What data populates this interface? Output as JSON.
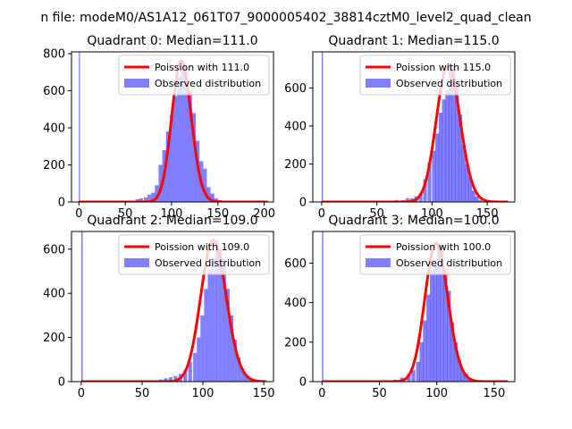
{
  "figure": {
    "suptitle": "n file: modeM0/AS1A12_061T07_9000005402_38814cztM0_level2_quad_clean"
  },
  "colors": {
    "fit": "#ff0000",
    "hist": "#0000ff",
    "hist_alpha": 0.5
  },
  "chart_data": [
    {
      "type": "bar",
      "title": "Quadrant 0: Median=111.0",
      "xlim": [
        -8,
        210
      ],
      "ylim": [
        0,
        810
      ],
      "xticks": [
        0,
        50,
        100,
        150,
        200
      ],
      "yticks": [
        0,
        200,
        400,
        600,
        800
      ],
      "legend": [
        "Poission with 111.0",
        "Observed distribution"
      ],
      "median": 111.0,
      "hist": {
        "bin_width": 4.1,
        "spike": {
          "x": 0,
          "y": 820
        },
        "bins": [
          [
            61,
            15
          ],
          [
            65,
            20
          ],
          [
            70,
            25
          ],
          [
            74,
            40
          ],
          [
            78,
            50
          ],
          [
            82,
            90
          ],
          [
            86,
            200
          ],
          [
            90,
            280
          ],
          [
            94,
            380
          ],
          [
            98,
            470
          ],
          [
            102,
            570
          ],
          [
            106,
            680
          ],
          [
            110,
            760
          ],
          [
            114,
            720
          ],
          [
            118,
            600
          ],
          [
            122,
            480
          ],
          [
            126,
            330
          ],
          [
            130,
            220
          ],
          [
            134,
            180
          ],
          [
            138,
            80
          ],
          [
            142,
            45
          ],
          [
            146,
            20
          ],
          [
            150,
            10
          ]
        ]
      }
    },
    {
      "type": "bar",
      "title": "Quadrant 1: Median=115.0",
      "xlim": [
        -8,
        175
      ],
      "ylim": [
        0,
        790
      ],
      "xticks": [
        0,
        50,
        100,
        150
      ],
      "yticks": [
        0,
        200,
        400,
        600
      ],
      "legend": [
        "Poission with 115.0",
        "Observed distribution"
      ],
      "median": 115.0,
      "hist": {
        "bin_width": 3.3,
        "spike": {
          "x": 0,
          "y": 800
        },
        "bins": [
          [
            60,
            5
          ],
          [
            66,
            10
          ],
          [
            72,
            10
          ],
          [
            76,
            20
          ],
          [
            80,
            20
          ],
          [
            84,
            30
          ],
          [
            88,
            40
          ],
          [
            92,
            120
          ],
          [
            96,
            210
          ],
          [
            100,
            270
          ],
          [
            103,
            360
          ],
          [
            106,
            470
          ],
          [
            109,
            540
          ],
          [
            112,
            590
          ],
          [
            115,
            700
          ],
          [
            118,
            720
          ],
          [
            121,
            640
          ],
          [
            124,
            460
          ],
          [
            127,
            300
          ],
          [
            130,
            200
          ],
          [
            133,
            130
          ],
          [
            136,
            60
          ],
          [
            139,
            30
          ],
          [
            142,
            10
          ]
        ]
      }
    },
    {
      "type": "bar",
      "title": "Quadrant 2: Median=109.0",
      "xlim": [
        -8,
        158
      ],
      "ylim": [
        0,
        680
      ],
      "xticks": [
        0,
        50,
        100,
        150
      ],
      "yticks": [
        0,
        200,
        400,
        600
      ],
      "legend": [
        "Poission with 109.0",
        "Observed distribution"
      ],
      "median": 109.0,
      "hist": {
        "bin_width": 3.0,
        "spike": {
          "x": 0,
          "y": 690
        },
        "bins": [
          [
            64,
            10
          ],
          [
            68,
            15
          ],
          [
            72,
            20
          ],
          [
            76,
            25
          ],
          [
            80,
            35
          ],
          [
            84,
            50
          ],
          [
            88,
            90
          ],
          [
            92,
            130
          ],
          [
            95,
            200
          ],
          [
            98,
            300
          ],
          [
            101,
            420
          ],
          [
            104,
            510
          ],
          [
            107,
            560
          ],
          [
            110,
            640
          ],
          [
            113,
            600
          ],
          [
            116,
            540
          ],
          [
            119,
            420
          ],
          [
            122,
            300
          ],
          [
            125,
            190
          ],
          [
            128,
            110
          ],
          [
            131,
            60
          ],
          [
            134,
            30
          ],
          [
            137,
            15
          ]
        ]
      }
    },
    {
      "type": "bar",
      "title": "Quadrant 3: Median=100.0",
      "xlim": [
        -8,
        168
      ],
      "ylim": [
        0,
        760
      ],
      "xticks": [
        0,
        50,
        100,
        150
      ],
      "yticks": [
        0,
        200,
        400,
        600
      ],
      "legend": [
        "Poission with 100.0",
        "Observed distribution"
      ],
      "median": 100.0,
      "hist": {
        "bin_width": 3.3,
        "spike": {
          "x": 0,
          "y": 770
        },
        "bins": [
          [
            56,
            5
          ],
          [
            62,
            10
          ],
          [
            68,
            20
          ],
          [
            74,
            40
          ],
          [
            78,
            60
          ],
          [
            82,
            100
          ],
          [
            85,
            200
          ],
          [
            88,
            310
          ],
          [
            91,
            440
          ],
          [
            94,
            560
          ],
          [
            97,
            600
          ],
          [
            100,
            700
          ],
          [
            103,
            690
          ],
          [
            106,
            560
          ],
          [
            109,
            460
          ],
          [
            112,
            300
          ],
          [
            115,
            200
          ],
          [
            118,
            110
          ],
          [
            121,
            60
          ],
          [
            124,
            40
          ],
          [
            127,
            20
          ],
          [
            130,
            10
          ]
        ]
      }
    }
  ]
}
